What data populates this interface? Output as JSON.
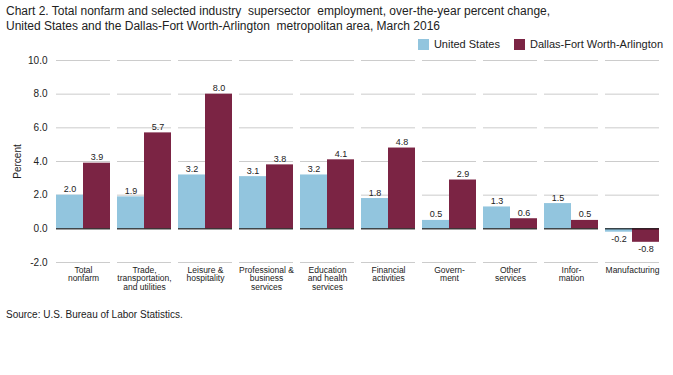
{
  "chart_data": {
    "type": "bar",
    "title": "Chart 2. Total nonfarm and selected industry  supersector  employment, over-the-year percent change,",
    "subtitle": "United States and the Dallas-Fort Worth-Arlington  metropolitan area, March 2016",
    "source": "Source: U.S. Bureau of Labor Statistics.",
    "ylabel": "Percent",
    "categories": [
      "Total\nnonfarm",
      "Trade,\ntransportation,\nand utilities",
      "Leisure &\nhospitality",
      "Professional &\nbusiness\nservices",
      "Education\nand health\nservices",
      "Financial\nactivities",
      "Govern-\nment",
      "Other\nservices",
      "Infor-\nmation",
      "Manufacturing"
    ],
    "series": [
      {
        "name": "United States",
        "color": "#92c5de",
        "values": [
          2.0,
          1.9,
          3.2,
          3.1,
          3.2,
          1.8,
          0.5,
          1.3,
          1.5,
          -0.2
        ],
        "value_labels": [
          "2.0",
          "1.9",
          "3.2",
          "3.1",
          "3.2",
          "1.8",
          "0.5",
          "1.3",
          "1.5",
          "-0.2"
        ]
      },
      {
        "name": "Dallas-Fort Worth-Arlington",
        "color": "#7b2444",
        "values": [
          3.9,
          5.7,
          8.0,
          3.8,
          4.1,
          4.8,
          2.9,
          0.6,
          0.5,
          -0.8
        ],
        "value_labels": [
          "3.9",
          "5.7",
          "8.0",
          "3.8",
          "4.1",
          "4.8",
          "2.9",
          "0.6",
          "0.5",
          "-0.8"
        ]
      }
    ],
    "ylim": [
      -2.0,
      10.0
    ],
    "yticks": [
      {
        "value": -2.0,
        "label": "-2.0"
      },
      {
        "value": 0.0,
        "label": "0.0"
      },
      {
        "value": 2.0,
        "label": "2.0"
      },
      {
        "value": 4.0,
        "label": "4.0"
      },
      {
        "value": 6.0,
        "label": "6.0"
      },
      {
        "value": 8.0,
        "label": "8.0"
      },
      {
        "value": 10.0,
        "label": "10.0"
      }
    ],
    "grid": true,
    "legend": "upper right",
    "data_labels": true
  }
}
